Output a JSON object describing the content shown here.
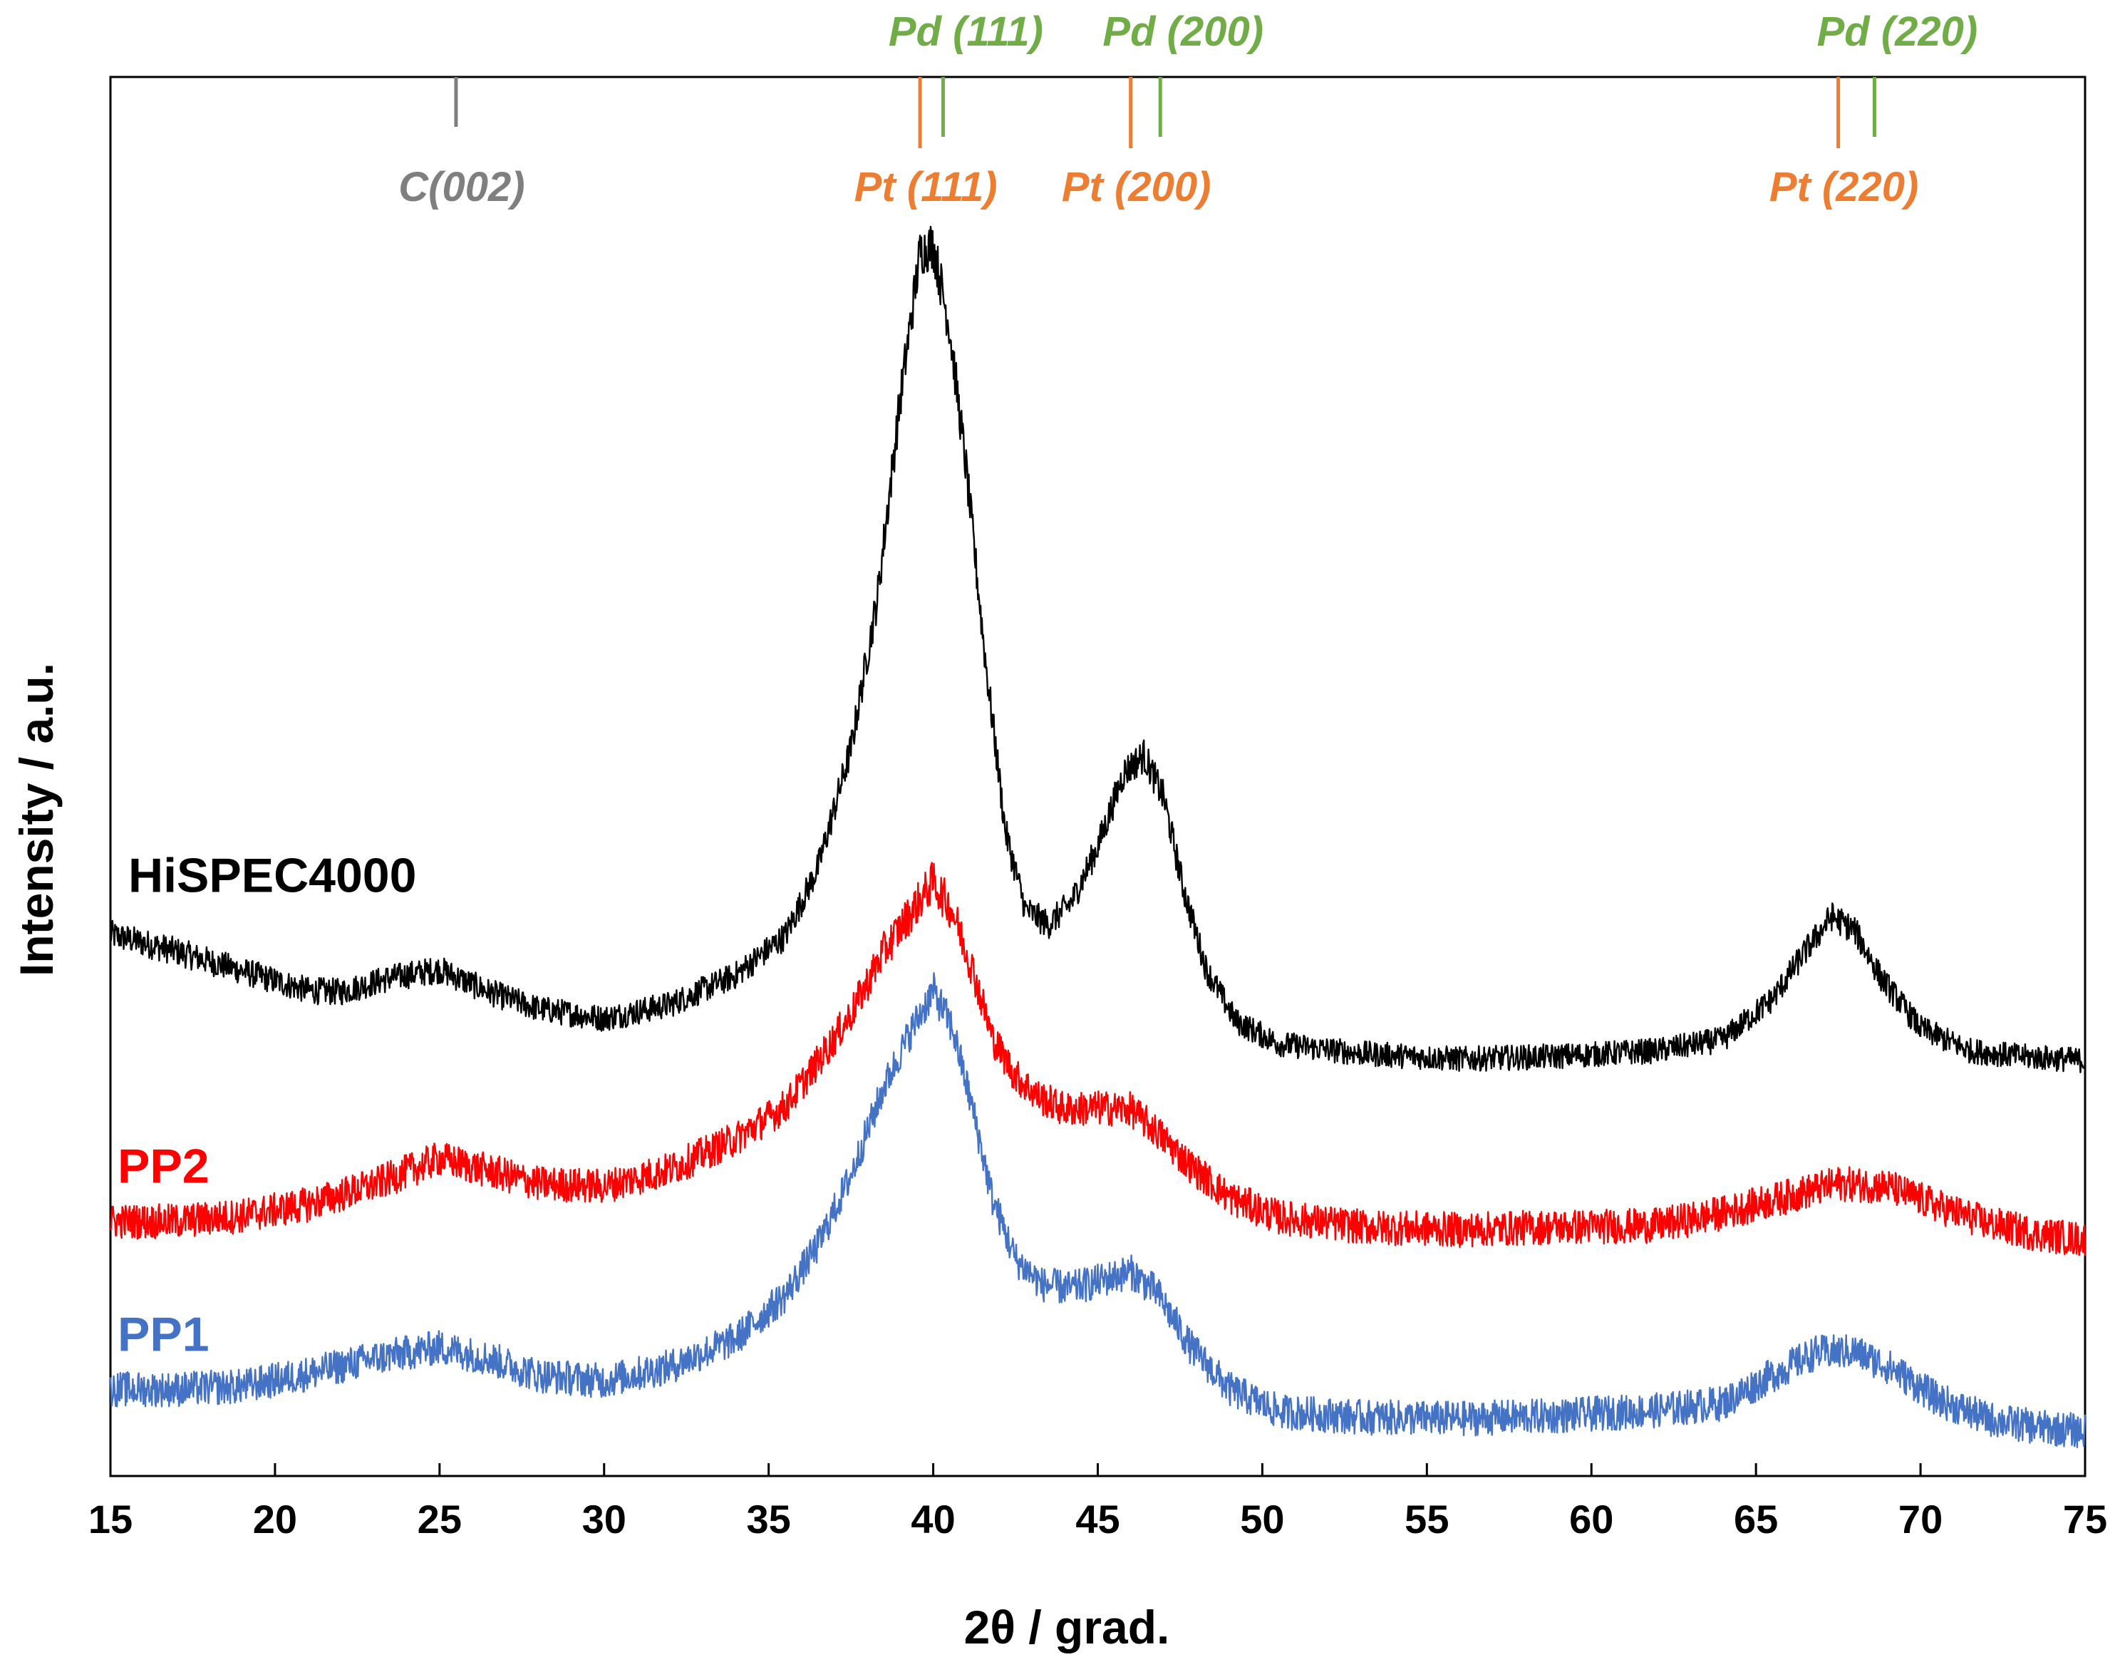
{
  "chart_data": {
    "type": "line",
    "title": "",
    "xlabel": "2θ / grad.",
    "ylabel": "Intensity / a.u.",
    "xlim": [
      15,
      75
    ],
    "ylim": [
      0,
      100
    ],
    "yticks_shown": false,
    "grid": false,
    "xticks": [
      "15",
      "20",
      "25",
      "30",
      "35",
      "40",
      "45",
      "50",
      "55",
      "60",
      "65",
      "70",
      "75"
    ],
    "series": [
      {
        "name": "HiSPEC4000",
        "color": "#000000",
        "points": [
          [
            15,
            38.7
          ],
          [
            17,
            37.5
          ],
          [
            19,
            36.1
          ],
          [
            21,
            34.7
          ],
          [
            22,
            34.6
          ],
          [
            23.5,
            35.6
          ],
          [
            25,
            36.2
          ],
          [
            26.5,
            34.6
          ],
          [
            28,
            33.4
          ],
          [
            30,
            32.7
          ],
          [
            32,
            33.7
          ],
          [
            34,
            35.8
          ],
          [
            35.5,
            38.6
          ],
          [
            36.5,
            43.5
          ],
          [
            37.5,
            52
          ],
          [
            38.3,
            62.7
          ],
          [
            39,
            77
          ],
          [
            39.6,
            87.5
          ],
          [
            40,
            88
          ],
          [
            40.5,
            82
          ],
          [
            41,
            72
          ],
          [
            41.6,
            58
          ],
          [
            42.2,
            46
          ],
          [
            42.8,
            40.5
          ],
          [
            43.5,
            39.4
          ],
          [
            44.2,
            41
          ],
          [
            45,
            45
          ],
          [
            45.8,
            50.3
          ],
          [
            46.4,
            51.5
          ],
          [
            47,
            48.5
          ],
          [
            47.6,
            42
          ],
          [
            48.3,
            36.2
          ],
          [
            49.2,
            32.5
          ],
          [
            50.5,
            30.9
          ],
          [
            53,
            30.2
          ],
          [
            56,
            29.8
          ],
          [
            59,
            30
          ],
          [
            62,
            30.4
          ],
          [
            64,
            31.2
          ],
          [
            65.5,
            34.1
          ],
          [
            66.5,
            37.5
          ],
          [
            67.3,
            40
          ],
          [
            68,
            39
          ],
          [
            68.8,
            35.6
          ],
          [
            70,
            32
          ],
          [
            71.5,
            30.4
          ],
          [
            73,
            30
          ],
          [
            75,
            29.7
          ]
        ]
      },
      {
        "name": "PP2",
        "color": "#ff0000",
        "points": [
          [
            15,
            18.2
          ],
          [
            17,
            18.2
          ],
          [
            19,
            18.6
          ],
          [
            21,
            19.4
          ],
          [
            23,
            20.8
          ],
          [
            25,
            22.7
          ],
          [
            26.5,
            21.8
          ],
          [
            28,
            20.9
          ],
          [
            30,
            20.7
          ],
          [
            32,
            21.9
          ],
          [
            34,
            24.1
          ],
          [
            35.5,
            26.4
          ],
          [
            36.5,
            29.6
          ],
          [
            37.5,
            33
          ],
          [
            38.5,
            37.5
          ],
          [
            39.3,
            40.2
          ],
          [
            40,
            42.5
          ],
          [
            40.6,
            40.3
          ],
          [
            41.2,
            36.2
          ],
          [
            41.8,
            31.3
          ],
          [
            42.5,
            28.6
          ],
          [
            43.2,
            27.1
          ],
          [
            44,
            26.2
          ],
          [
            45,
            26.3
          ],
          [
            46,
            26.2
          ],
          [
            46.8,
            24.6
          ],
          [
            47.8,
            22.2
          ],
          [
            49,
            19.9
          ],
          [
            50.5,
            18.5
          ],
          [
            53,
            17.8
          ],
          [
            56,
            17.6
          ],
          [
            59,
            17.8
          ],
          [
            62,
            17.9
          ],
          [
            64,
            18.8
          ],
          [
            66,
            20
          ],
          [
            67.5,
            20.9
          ],
          [
            69,
            20.7
          ],
          [
            70.5,
            19.3
          ],
          [
            72,
            18.1
          ],
          [
            73.5,
            17.3
          ],
          [
            75,
            16.9
          ]
        ]
      },
      {
        "name": "PP1",
        "color": "#4472c4",
        "points": [
          [
            15,
            6.2
          ],
          [
            17,
            6.2
          ],
          [
            19,
            6.4
          ],
          [
            21,
            7.3
          ],
          [
            23,
            8.4
          ],
          [
            25,
            9.2
          ],
          [
            26.5,
            8.4
          ],
          [
            28,
            7.2
          ],
          [
            30,
            6.8
          ],
          [
            32,
            7.8
          ],
          [
            34,
            9.8
          ],
          [
            35.5,
            12.9
          ],
          [
            36.5,
            16.5
          ],
          [
            37.5,
            21.5
          ],
          [
            38.5,
            27.8
          ],
          [
            39.3,
            31.7
          ],
          [
            40,
            34.7
          ],
          [
            40.6,
            31.9
          ],
          [
            41.2,
            26.2
          ],
          [
            41.8,
            19.8
          ],
          [
            42.5,
            15.5
          ],
          [
            43.3,
            13.7
          ],
          [
            44.2,
            13.4
          ],
          [
            45,
            13.9
          ],
          [
            46,
            14.6
          ],
          [
            46.8,
            13.1
          ],
          [
            47.8,
            9.3
          ],
          [
            49,
            6.2
          ],
          [
            50.5,
            4.6
          ],
          [
            53,
            4.2
          ],
          [
            56,
            4.1
          ],
          [
            59,
            4.3
          ],
          [
            62,
            4.7
          ],
          [
            64,
            5.2
          ],
          [
            65.5,
            7.2
          ],
          [
            66.8,
            8.8
          ],
          [
            68,
            8.9
          ],
          [
            69.2,
            7.6
          ],
          [
            70.5,
            5.5
          ],
          [
            72,
            4.1
          ],
          [
            73.5,
            3.5
          ],
          [
            75,
            3.2
          ]
        ]
      }
    ],
    "series_labels": [
      {
        "name": "HiSPEC4000",
        "text": "HiSPEC4000",
        "color": "#000000"
      },
      {
        "name": "PP2",
        "text": "PP2",
        "color": "#ff0000"
      },
      {
        "name": "PP1",
        "text": "PP1",
        "color": "#4472c4"
      }
    ],
    "reference_markers": [
      {
        "label": "C(002)",
        "x": 25.5,
        "color": "#7f7f7f",
        "group": "C",
        "label_position": "below"
      },
      {
        "label": "Pt (111)",
        "x": 39.6,
        "color": "#ed7d31",
        "group": "Pt",
        "label_position": "below"
      },
      {
        "label": "Pd (111)",
        "x": 40.3,
        "color": "#70ad47",
        "group": "Pd",
        "label_position": "above"
      },
      {
        "label": "Pt (200)",
        "x": 46.0,
        "color": "#ed7d31",
        "group": "Pt",
        "label_position": "below"
      },
      {
        "label": "Pd (200)",
        "x": 46.9,
        "color": "#70ad47",
        "group": "Pd",
        "label_position": "above"
      },
      {
        "label": "Pt (220)",
        "x": 67.5,
        "color": "#ed7d31",
        "group": "Pt",
        "label_position": "below"
      },
      {
        "label": "Pd (220)",
        "x": 68.6,
        "color": "#70ad47",
        "group": "Pd",
        "label_position": "above"
      }
    ]
  }
}
